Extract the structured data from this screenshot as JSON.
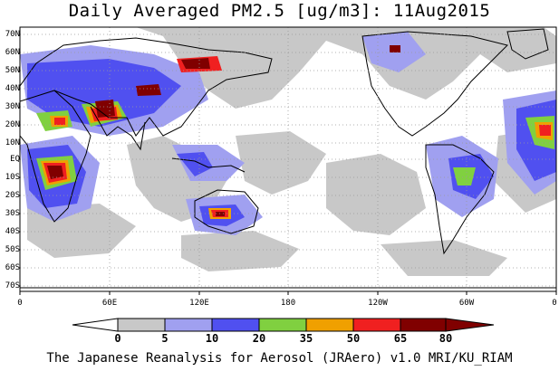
{
  "title": "Daily Averaged PM2.5 [ug/m3]: 11Aug2015",
  "footer": "The Japanese Reanalysis for Aerosol (JRAero) v1.0 MRI/KU_RIAM",
  "map": {
    "projection": "equirectangular",
    "lon_range": [
      0,
      360
    ],
    "lat_range": [
      -75,
      75
    ],
    "grid": "dotted",
    "lat_labels": [
      "70N",
      "60N",
      "50N",
      "40N",
      "30N",
      "20N",
      "10N",
      "EQ",
      "10S",
      "20S",
      "30S",
      "40S",
      "50S",
      "60S",
      "70S"
    ],
    "lon_labels": [
      "0",
      "60E",
      "120E",
      "180",
      "120W",
      "60W",
      "0"
    ]
  },
  "colorbar": {
    "labels": [
      "0",
      "5",
      "10",
      "20",
      "35",
      "50",
      "65",
      "80"
    ],
    "colors": [
      "#ffffff",
      "#c8c8c8",
      "#a0a0f0",
      "#5050f0",
      "#80d040",
      "#f0a000",
      "#f02020",
      "#800000"
    ],
    "outline": "#000000"
  },
  "palette": {
    "land": "#000000",
    "grid": "#999999"
  }
}
